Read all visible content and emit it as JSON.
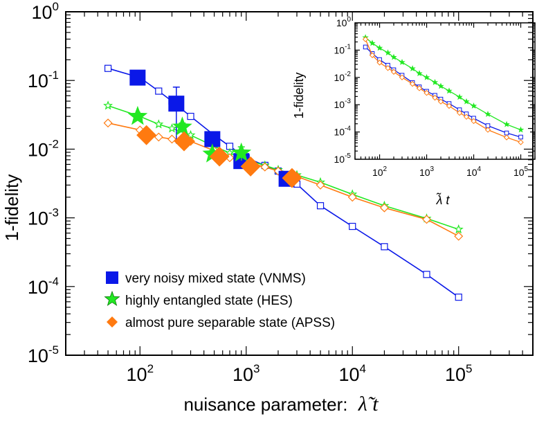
{
  "colors": {
    "vnms": "#0a18e8",
    "hes": "#22e822",
    "apss": "#ff7a10",
    "axis": "#000000"
  },
  "chart_data": [
    {
      "type": "line",
      "scale": "log-log",
      "xlabel_prefix": "nuisance parameter:",
      "xlabel_symbol": "λ̃ t",
      "ylabel": "1-fidelity",
      "xlim": [
        20,
        500000
      ],
      "ylim": [
        1e-05,
        1
      ],
      "xticks": [
        {
          "base": "10",
          "exp": "2"
        },
        {
          "base": "10",
          "exp": "3"
        },
        {
          "base": "10",
          "exp": "4"
        },
        {
          "base": "10",
          "exp": "5"
        }
      ],
      "yticks": [
        {
          "base": "10",
          "exp": "-5"
        },
        {
          "base": "10",
          "exp": "-4"
        },
        {
          "base": "10",
          "exp": "-3"
        },
        {
          "base": "10",
          "exp": "-2"
        },
        {
          "base": "10",
          "exp": "-1"
        },
        {
          "base": "10",
          "exp": "0"
        }
      ],
      "legend_position": "bottom-left",
      "series": [
        {
          "key": "vnms",
          "name": "very noisy mixed state (VNMS)",
          "marker": "square",
          "line_x": [
            50,
            100,
            150,
            200,
            300,
            500,
            700,
            1000,
            1500,
            2000,
            3000,
            5000,
            10000,
            20000,
            50000,
            100000
          ],
          "line_y": [
            0.15,
            0.11,
            0.07,
            0.05,
            0.03,
            0.016,
            0.011,
            0.0075,
            0.0058,
            0.0048,
            0.0031,
            0.0015,
            0.00075,
            0.00038,
            0.00015,
            7e-05
          ],
          "exp_x": [
            95,
            220,
            480,
            900,
            2400
          ],
          "exp_y": [
            0.11,
            0.046,
            0.014,
            0.0067,
            0.0037
          ],
          "exp_err": [
            0.012,
            0.034,
            0.003,
            0.0005,
            0.0003
          ]
        },
        {
          "key": "hes",
          "name": "highly entangled state (HES)",
          "marker": "star",
          "line_x": [
            50,
            100,
            150,
            200,
            300,
            500,
            700,
            1000,
            1500,
            2000,
            3000,
            5000,
            10000,
            20000,
            50000,
            100000
          ],
          "line_y": [
            0.043,
            0.03,
            0.023,
            0.02,
            0.016,
            0.011,
            0.0088,
            0.007,
            0.0058,
            0.005,
            0.0042,
            0.0033,
            0.0022,
            0.0015,
            0.00098,
            0.00068
          ],
          "exp_x": [
            95,
            250,
            480,
            900
          ],
          "exp_y": [
            0.03,
            0.021,
            0.0085,
            0.0088
          ],
          "exp_err": [
            0.002,
            0.003,
            0.001,
            0.002
          ]
        },
        {
          "key": "apss",
          "name": "almost pure separable state (APSS)",
          "marker": "diamond",
          "line_x": [
            50,
            100,
            150,
            200,
            300,
            500,
            700,
            1000,
            1500,
            2000,
            3000,
            5000,
            10000,
            20000,
            50000,
            100000
          ],
          "line_y": [
            0.024,
            0.019,
            0.015,
            0.014,
            0.013,
            0.0095,
            0.0075,
            0.0065,
            0.0055,
            0.0048,
            0.004,
            0.003,
            0.002,
            0.0014,
            0.00095,
            0.00054
          ],
          "exp_x": [
            115,
            260,
            560,
            1100,
            2700
          ],
          "exp_y": [
            0.016,
            0.013,
            0.0078,
            0.0056,
            0.0038
          ],
          "exp_err": [
            0.001,
            0.0015,
            0.0008,
            0.0005,
            0.0003
          ]
        }
      ]
    },
    {
      "type": "line",
      "scale": "log-log",
      "role": "inset",
      "xlabel": "λ̃ t",
      "ylabel": "1-fidelity",
      "xlim": [
        30,
        200000
      ],
      "ylim": [
        1e-05,
        1
      ],
      "xticks": [
        {
          "base": "10",
          "exp": "2"
        },
        {
          "base": "10",
          "exp": "3"
        },
        {
          "base": "10",
          "exp": "4"
        },
        {
          "base": "10",
          "exp": "5"
        }
      ],
      "yticks": [
        {
          "base": "10",
          "exp": "-5"
        },
        {
          "base": "10",
          "exp": "-4"
        },
        {
          "base": "10",
          "exp": "-3"
        },
        {
          "base": "10",
          "exp": "-2"
        },
        {
          "base": "10",
          "exp": "-1"
        },
        {
          "base": "10",
          "exp": "0"
        }
      ],
      "series": [
        {
          "key": "vnms",
          "marker": "square",
          "x": [
            50,
            70,
            100,
            150,
            200,
            300,
            500,
            700,
            1000,
            1500,
            2000,
            3000,
            5000,
            7000,
            10000,
            20000,
            50000,
            100000
          ],
          "y": [
            0.13,
            0.075,
            0.045,
            0.028,
            0.019,
            0.012,
            0.0065,
            0.0045,
            0.0031,
            0.0022,
            0.0016,
            0.0011,
            0.00065,
            0.00046,
            0.00032,
            0.00017,
            9.2e-05,
            6.5e-05
          ]
        },
        {
          "key": "hes",
          "marker": "star",
          "x": [
            50,
            70,
            100,
            150,
            200,
            300,
            500,
            700,
            1000,
            1500,
            2000,
            3000,
            5000,
            7000,
            10000,
            20000,
            50000,
            100000
          ],
          "y": [
            0.29,
            0.18,
            0.12,
            0.08,
            0.055,
            0.036,
            0.021,
            0.014,
            0.01,
            0.0066,
            0.0048,
            0.0032,
            0.0019,
            0.0013,
            0.0009,
            0.00045,
            0.00019,
            0.00012
          ]
        },
        {
          "key": "apss",
          "marker": "diamond",
          "x": [
            50,
            70,
            100,
            150,
            200,
            300,
            500,
            700,
            1000,
            1500,
            2000,
            3000,
            5000,
            7000,
            10000,
            20000,
            50000,
            100000
          ],
          "y": [
            0.25,
            0.065,
            0.035,
            0.022,
            0.016,
            0.01,
            0.0058,
            0.004,
            0.0027,
            0.0018,
            0.0013,
            0.0009,
            0.0005,
            0.00036,
            0.00025,
            0.00012,
            6.3e-05,
            4.2e-05
          ]
        }
      ]
    }
  ]
}
